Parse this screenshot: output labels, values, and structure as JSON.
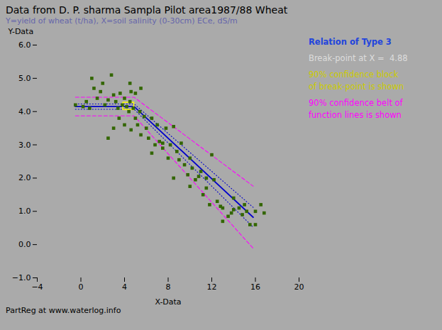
{
  "chart_data": {
    "type": "scatter",
    "title": "Data from D. P. sharma Sampla Pilot area1987/88 Wheat",
    "subtitle": "Y=yield of wheat (t/ha), X=soil salinity (0-30cm) ECe, dS/m",
    "xlabel": "X-Data",
    "ylabel": "Y-Data",
    "footer": "PartReg at www.waterlog.info",
    "annotations": [
      {
        "text": "Relation of Type 3",
        "color": "#2244dd"
      },
      {
        "text": "Break-point at X =  4.88",
        "color": "#dddddd"
      },
      {
        "text": "90% confidence block",
        "color": "#cccc00"
      },
      {
        "text": "of break-point is shown",
        "color": "#cccc00"
      },
      {
        "text": "90% confidence belt of",
        "color": "#ff00ff"
      },
      {
        "text": "function lines is shown",
        "color": "#ff00ff"
      }
    ],
    "xlim": [
      -4.0,
      20.0
    ],
    "xticks": [
      -4,
      0,
      4,
      8,
      12,
      16,
      20
    ],
    "ylim": [
      -1.0,
      6.0
    ],
    "yticks": [
      -1,
      0,
      1,
      2,
      3,
      4,
      5,
      6
    ],
    "series": [
      {
        "type": "line",
        "color": "#ff00ff",
        "line_style": "dashed",
        "x": [
          -0.5,
          4.88,
          15.8
        ],
        "values": [
          4.43,
          4.43,
          1.7546
        ]
      },
      {
        "type": "line",
        "color": "#ff00ff",
        "line_style": "dashed",
        "x": [
          -0.5,
          4.88,
          15.8
        ],
        "values": [
          3.87,
          3.87,
          -0.1158
        ]
      },
      {
        "type": "line",
        "color": "#0000cc",
        "line_style": "dotted",
        "x": [
          -0.5,
          4.88,
          15.8
        ],
        "values": [
          4.23,
          4.23,
          1.1178
        ]
      },
      {
        "type": "line",
        "color": "#0000cc",
        "line_style": "dotted",
        "x": [
          -0.5,
          4.88,
          15.8
        ],
        "values": [
          4.07,
          4.07,
          0.521
        ]
      },
      {
        "type": "line",
        "color": "#0000cc",
        "line_style": "solid",
        "x": [
          -0.5,
          4.88,
          15.8
        ],
        "values": [
          4.15,
          4.15,
          0.8194
        ]
      },
      {
        "type": "scatter",
        "color": "#336600",
        "marker": "square",
        "points": [
          [
            -0.5,
            4.2
          ],
          [
            0.2,
            4.15
          ],
          [
            0.5,
            4.3
          ],
          [
            0.8,
            4.1
          ],
          [
            1.0,
            5.0
          ],
          [
            1.2,
            4.7
          ],
          [
            1.5,
            4.4
          ],
          [
            1.8,
            4.6
          ],
          [
            2.0,
            4.85
          ],
          [
            2.2,
            4.2
          ],
          [
            2.5,
            4.35
          ],
          [
            2.8,
            5.1
          ],
          [
            3.0,
            4.5
          ],
          [
            3.2,
            4.3
          ],
          [
            3.4,
            4.1
          ],
          [
            3.5,
            3.8
          ],
          [
            3.6,
            4.55
          ],
          [
            3.8,
            4.2
          ],
          [
            4.0,
            4.4
          ],
          [
            4.0,
            3.6
          ],
          [
            4.2,
            4.15
          ],
          [
            4.4,
            4.0
          ],
          [
            4.5,
            4.3
          ],
          [
            4.6,
            4.6
          ],
          [
            4.6,
            3.45
          ],
          [
            4.8,
            4.1
          ],
          [
            5.0,
            4.55
          ],
          [
            5.0,
            3.8
          ],
          [
            5.2,
            3.6
          ],
          [
            5.4,
            4.0
          ],
          [
            5.5,
            3.3
          ],
          [
            5.8,
            3.85
          ],
          [
            6.0,
            3.5
          ],
          [
            6.2,
            3.2
          ],
          [
            6.5,
            2.75
          ],
          [
            6.8,
            3.0
          ],
          [
            7.0,
            3.6
          ],
          [
            7.2,
            3.1
          ],
          [
            7.5,
            2.9
          ],
          [
            7.8,
            3.5
          ],
          [
            8.0,
            2.6
          ],
          [
            8.2,
            3.0
          ],
          [
            8.5,
            3.55
          ],
          [
            8.8,
            2.8
          ],
          [
            9.0,
            2.55
          ],
          [
            9.2,
            3.05
          ],
          [
            9.5,
            2.4
          ],
          [
            9.8,
            2.1
          ],
          [
            10.0,
            2.6
          ],
          [
            10.2,
            2.3
          ],
          [
            10.5,
            1.95
          ],
          [
            10.8,
            2.05
          ],
          [
            11.0,
            2.2
          ],
          [
            11.2,
            1.5
          ],
          [
            11.5,
            1.7
          ],
          [
            11.8,
            1.2
          ],
          [
            12.0,
            2.7
          ],
          [
            12.2,
            1.95
          ],
          [
            12.5,
            1.3
          ],
          [
            12.8,
            1.15
          ],
          [
            13.0,
            1.1
          ],
          [
            13.5,
            0.85
          ],
          [
            13.8,
            0.95
          ],
          [
            14.0,
            1.05
          ],
          [
            14.5,
            1.1
          ],
          [
            14.8,
            0.9
          ],
          [
            15.0,
            1.2
          ],
          [
            15.2,
            1.0
          ],
          [
            15.5,
            0.6
          ],
          [
            16.0,
            1.0
          ],
          [
            16.5,
            1.2
          ],
          [
            16.8,
            0.95
          ],
          [
            2.5,
            3.2
          ],
          [
            3.0,
            3.5
          ],
          [
            4.5,
            4.85
          ],
          [
            5.5,
            4.7
          ],
          [
            6.5,
            3.8
          ],
          [
            7.5,
            3.05
          ],
          [
            8.5,
            2.0
          ],
          [
            10.0,
            1.75
          ],
          [
            11.5,
            2.0
          ],
          [
            13.0,
            0.7
          ],
          [
            14.0,
            1.4
          ],
          [
            16.0,
            0.6
          ]
        ]
      }
    ],
    "breakpoint_block": {
      "color": "#ffff00",
      "x": [
        3.88,
        4.88
      ],
      "y": [
        4.05,
        4.27
      ]
    }
  }
}
